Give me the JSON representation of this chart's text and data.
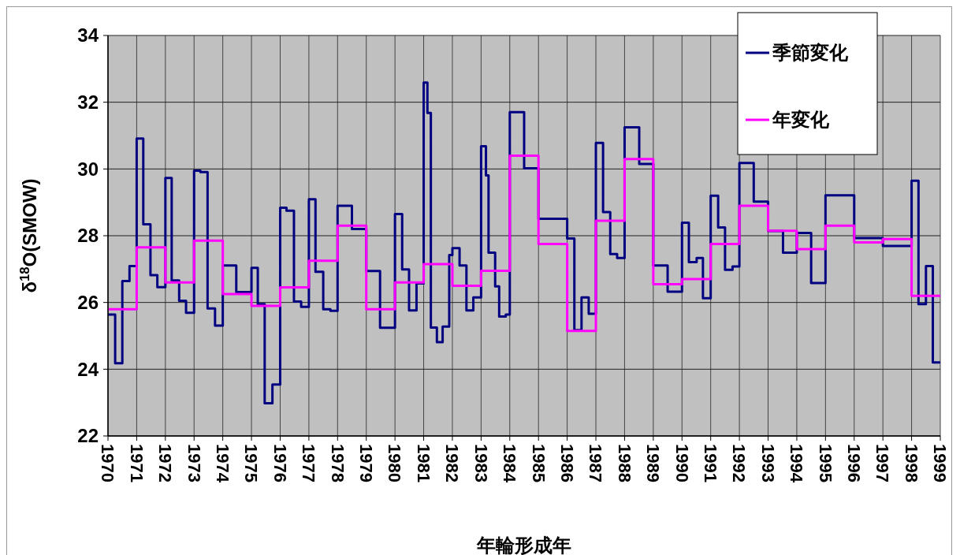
{
  "chart_data": {
    "type": "step",
    "xlabel": "年輪形成年",
    "ylabel": "δ$^{18}$O(SMOW)",
    "xlim": [
      1970,
      1999
    ],
    "xticks": [
      1970,
      1971,
      1972,
      1973,
      1974,
      1975,
      1976,
      1977,
      1978,
      1979,
      1980,
      1981,
      1982,
      1983,
      1984,
      1985,
      1986,
      1987,
      1988,
      1989,
      1990,
      1991,
      1992,
      1993,
      1994,
      1995,
      1996,
      1997,
      1998,
      1999
    ],
    "ylim": [
      22,
      34
    ],
    "yticks": [
      22,
      24,
      26,
      28,
      30,
      32,
      34
    ],
    "grid": true,
    "legend": "top right",
    "line_style": "solid",
    "marker": "none",
    "series": [
      {
        "name": "季節変化",
        "color": "#000080",
        "x": [
          1970,
          1970.25,
          1970.5,
          1970.75,
          1971,
          1971.23,
          1971.48,
          1971.72,
          1972,
          1972.22,
          1972.48,
          1972.72,
          1973,
          1973.22,
          1973.47,
          1973.73,
          1974,
          1974.47,
          1975,
          1975.22,
          1975.46,
          1975.73,
          1976,
          1976.22,
          1976.48,
          1976.73,
          1977,
          1977.23,
          1977.5,
          1977.75,
          1978,
          1978.5,
          1979,
          1979.48,
          1980,
          1980.25,
          1980.49,
          1980.75,
          1981,
          1981.13,
          1981.25,
          1981.46,
          1981.66,
          1981.89,
          1982,
          1982.25,
          1982.49,
          1982.73,
          1983,
          1983.17,
          1983.26,
          1983.49,
          1983.63,
          1983.86,
          1984,
          1984.5,
          1985,
          1986,
          1986.25,
          1986.5,
          1986.75,
          1987,
          1987.25,
          1987.5,
          1987.74,
          1988,
          1988.51,
          1989,
          1989.5,
          1990,
          1990.24,
          1990.51,
          1990.73,
          1991,
          1991.26,
          1991.5,
          1991.76,
          1992,
          1992.5,
          1993,
          1993.52,
          1994,
          1994.5,
          1995,
          1996,
          1997,
          1998,
          1998.24,
          1998.5,
          1998.74,
          1999
        ],
        "values": [
          25.64,
          24.18,
          26.64,
          27.09,
          30.91,
          28.34,
          26.82,
          26.46,
          29.73,
          26.66,
          26.05,
          25.69,
          29.95,
          29.91,
          25.82,
          25.31,
          27.11,
          26.31,
          27.04,
          25.95,
          22.98,
          23.54,
          28.84,
          28.75,
          26.03,
          25.87,
          29.09,
          26.92,
          25.8,
          25.75,
          28.9,
          28.2,
          26.94,
          25.24,
          28.65,
          26.99,
          25.76,
          26.57,
          32.59,
          31.68,
          25.25,
          24.81,
          25.28,
          27.42,
          27.63,
          27.11,
          25.76,
          26.15,
          30.68,
          29.81,
          27.49,
          26.48,
          25.58,
          25.64,
          31.7,
          30.02,
          28.51,
          27.92,
          25.17,
          26.15,
          25.66,
          30.78,
          28.71,
          27.45,
          27.33,
          31.25,
          30.15,
          27.11,
          26.32,
          28.39,
          27.21,
          27.33,
          26.13,
          29.2,
          28.25,
          26.98,
          27.08,
          30.18,
          29.02,
          28.14,
          27.49,
          28.08,
          26.58,
          29.21,
          27.93,
          27.69,
          29.65,
          25.95,
          27.09,
          24.2,
          24.2
        ]
      },
      {
        "name": "年変化",
        "color": "#ff00ff",
        "x": [
          1970,
          1971,
          1972,
          1973,
          1974,
          1975,
          1976,
          1977,
          1978,
          1979,
          1980,
          1981,
          1982,
          1983,
          1984,
          1985,
          1986,
          1987,
          1988,
          1989,
          1990,
          1991,
          1992,
          1993,
          1994,
          1995,
          1996,
          1997,
          1998,
          1999
        ],
        "values": [
          25.8,
          27.65,
          26.6,
          27.85,
          26.25,
          25.9,
          26.45,
          27.25,
          28.3,
          25.8,
          26.6,
          27.15,
          26.5,
          26.95,
          30.4,
          27.75,
          25.15,
          28.45,
          30.3,
          26.55,
          26.7,
          27.75,
          28.9,
          28.15,
          27.6,
          28.3,
          27.8,
          27.9,
          26.2,
          26.2
        ]
      }
    ]
  }
}
